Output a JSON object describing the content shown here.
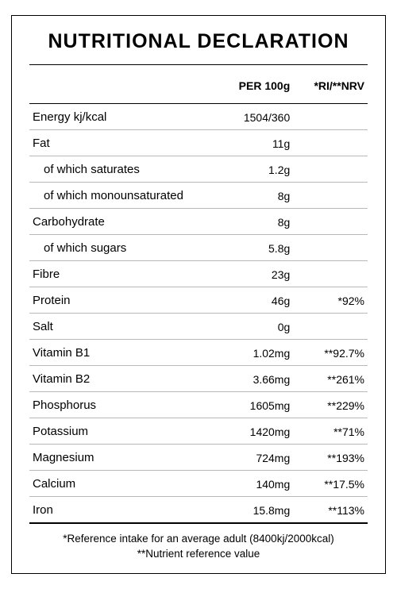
{
  "title": "NUTRITIONAL DECLARATION",
  "columns": {
    "label": "",
    "per100g": "PER 100g",
    "nrv": "*RI/**NRV"
  },
  "rows": [
    {
      "label": "Energy kj/kcal",
      "amount": "1504/360",
      "nrv": "",
      "sub": false
    },
    {
      "label": "Fat",
      "amount": "11g",
      "nrv": "",
      "sub": false
    },
    {
      "label": "of which saturates",
      "amount": "1.2g",
      "nrv": "",
      "sub": true
    },
    {
      "label": "of which monounsaturated",
      "amount": "8g",
      "nrv": "",
      "sub": true
    },
    {
      "label": "Carbohydrate",
      "amount": "8g",
      "nrv": "",
      "sub": false
    },
    {
      "label": "of which sugars",
      "amount": "5.8g",
      "nrv": "",
      "sub": true
    },
    {
      "label": "Fibre",
      "amount": "23g",
      "nrv": "",
      "sub": false
    },
    {
      "label": "Protein",
      "amount": "46g",
      "nrv": "*92%",
      "sub": false
    },
    {
      "label": "Salt",
      "amount": "0g",
      "nrv": "",
      "sub": false
    },
    {
      "label": "Vitamin B1",
      "amount": "1.02mg",
      "nrv": "**92.7%",
      "sub": false
    },
    {
      "label": "Vitamin B2",
      "amount": "3.66mg",
      "nrv": "**261%",
      "sub": false
    },
    {
      "label": "Phosphorus",
      "amount": "1605mg",
      "nrv": "**229%",
      "sub": false
    },
    {
      "label": "Potassium",
      "amount": "1420mg",
      "nrv": "**71%",
      "sub": false
    },
    {
      "label": "Magnesium",
      "amount": "724mg",
      "nrv": "**193%",
      "sub": false
    },
    {
      "label": "Calcium",
      "amount": "140mg",
      "nrv": "**17.5%",
      "sub": false
    },
    {
      "label": "Iron",
      "amount": "15.8mg",
      "nrv": "**113%",
      "sub": false
    }
  ],
  "footnotes": {
    "line1": "*Reference intake for an average adult (8400kj/2000kcal)",
    "line2": "**Nutrient reference value"
  },
  "style": {
    "type": "table",
    "border_color": "#000000",
    "row_border_color": "#b8b8b8",
    "background_color": "#ffffff",
    "title_fontsize": 25,
    "header_fontsize": 14,
    "body_fontsize": 15,
    "footnote_fontsize": 13.5,
    "col_widths_pct": [
      56,
      22,
      22
    ]
  }
}
